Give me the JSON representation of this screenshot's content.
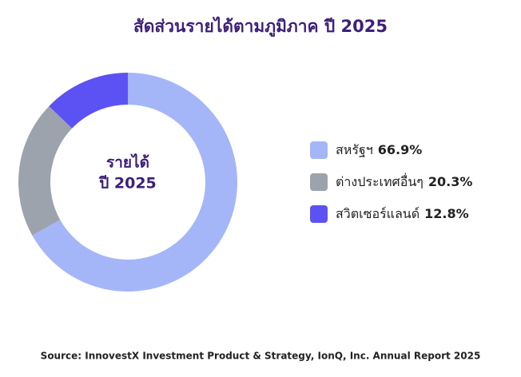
{
  "chart_data": {
    "type": "donut",
    "title": "สัดส่วนรายได้ตามภูมิภาค ปี 2025",
    "center_label": [
      "รายได้",
      "ปี 2025"
    ],
    "categories": [
      "สหรัฐฯ",
      "ต่างประเทศอื่นๆ",
      "สวิตเซอร์แลนด์"
    ],
    "values": [
      66.9,
      20.3,
      12.8
    ],
    "value_labels": [
      "66.9%",
      "20.3%",
      "12.8%"
    ],
    "colors": [
      "#a5b6f8",
      "#9da3ac",
      "#5c52f3"
    ],
    "source": "Source: InnovestX Investment Product & Strategy, IonQ, Inc. Annual Report 2025"
  }
}
